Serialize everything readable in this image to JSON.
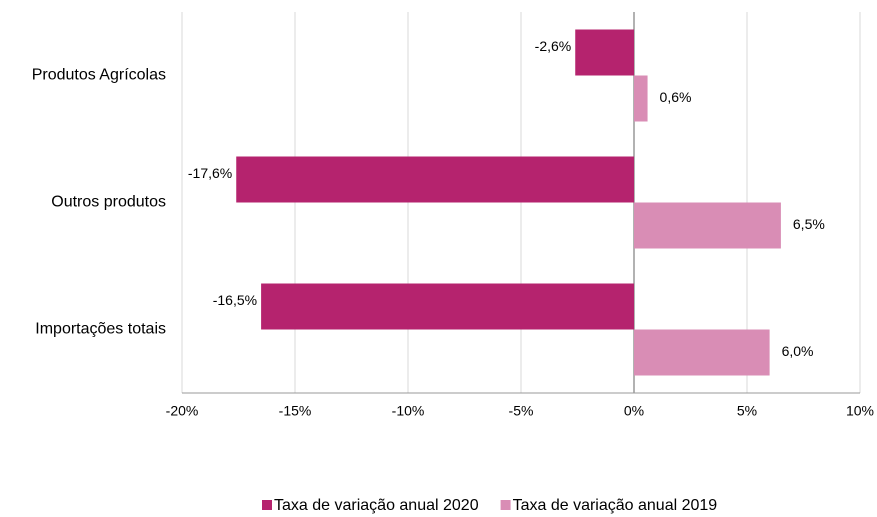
{
  "chart_data": {
    "type": "hbar",
    "categories": [
      "Produtos Agrícolas",
      "Outros produtos",
      "Importações totais"
    ],
    "series": [
      {
        "name": "Taxa de variação anual 2020",
        "color": "#b5236e",
        "values": [
          -2.6,
          -17.6,
          -16.5
        ],
        "value_labels": [
          "-2,6%",
          "-17,6%",
          "-16,5%"
        ]
      },
      {
        "name": "Taxa de variação anual 2019",
        "color": "#d98db5",
        "values": [
          0.6,
          6.5,
          6.0
        ],
        "value_labels": [
          "0,6%",
          "6,5%",
          "6,0%"
        ]
      }
    ],
    "xlim": [
      -20,
      10
    ],
    "xticks": [
      {
        "value": -20,
        "label": "-20%"
      },
      {
        "value": -15,
        "label": "-15%"
      },
      {
        "value": -10,
        "label": "-10%"
      },
      {
        "value": -5,
        "label": "-5%"
      },
      {
        "value": 0,
        "label": "0%"
      },
      {
        "value": 5,
        "label": "5%"
      },
      {
        "value": 10,
        "label": "10%"
      }
    ],
    "grid": true,
    "legend": "bottom"
  }
}
